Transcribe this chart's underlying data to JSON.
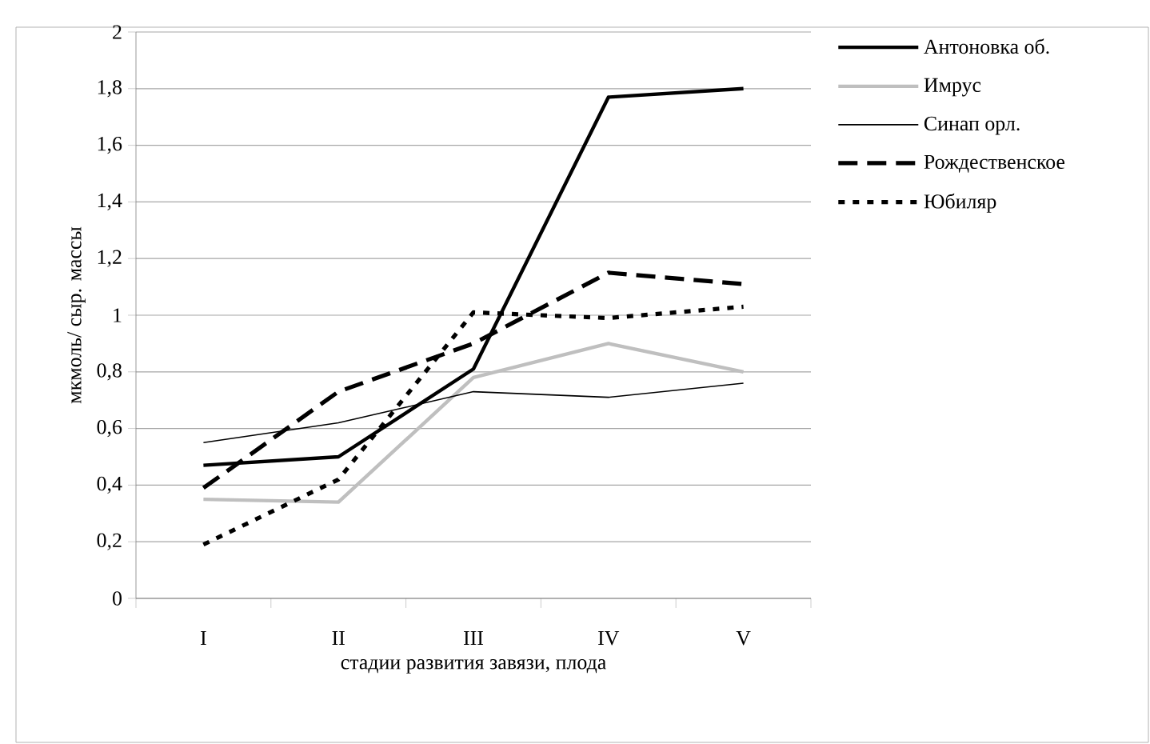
{
  "chart_data": {
    "type": "line",
    "xlabel": "стадии развития завязи, плода",
    "ylabel": "мкмоль/ сыр. массы",
    "categories": [
      "I",
      "II",
      "III",
      "IV",
      "V"
    ],
    "series": [
      {
        "name": "Антоновка об.",
        "color": "#000000",
        "line_style": "solid",
        "values": [
          0.47,
          0.5,
          0.81,
          1.77,
          1.8
        ]
      },
      {
        "name": "Имрус",
        "color": "#bfbfbf",
        "line_style": "solid",
        "values": [
          0.35,
          0.34,
          0.78,
          0.9,
          0.8
        ]
      },
      {
        "name": "Синап орл.",
        "color": "#000000",
        "line_style": "solid",
        "values": [
          0.55,
          0.62,
          0.73,
          0.71,
          0.76
        ]
      },
      {
        "name": "Рождественское",
        "color": "#000000",
        "line_style": "dashed",
        "values": [
          0.39,
          0.73,
          0.9,
          1.15,
          1.11
        ]
      },
      {
        "name": "Юбиляр",
        "color": "#000000",
        "line_style": "dotted",
        "values": [
          0.19,
          0.42,
          1.01,
          0.99,
          1.03
        ]
      }
    ],
    "ylim": [
      0,
      2
    ],
    "yticks": [
      0,
      {
        "value": 0.2,
        "label": "0,2"
      },
      {
        "value": 0.4,
        "label": "0,4"
      },
      {
        "value": 0.6,
        "label": "0,6"
      },
      {
        "value": 0.8,
        "label": "0,8"
      },
      1,
      {
        "value": 1.2,
        "label": "1,2"
      },
      {
        "value": 1.4,
        "label": "1,4"
      },
      {
        "value": 1.6,
        "label": "1,6"
      },
      {
        "value": 1.8,
        "label": "1,8"
      },
      2
    ],
    "grid": "y",
    "legend": "right",
    "marker": "none"
  }
}
